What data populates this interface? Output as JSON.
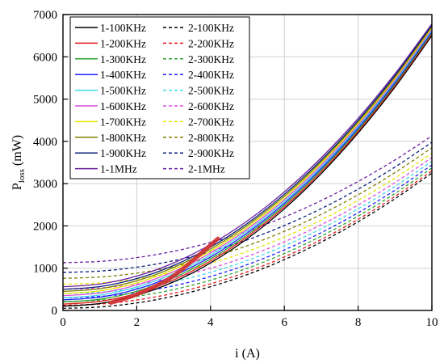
{
  "chart_data": {
    "type": "line",
    "xlabel": "i (A)",
    "ylabel_main": "P",
    "ylabel_sub": "loss",
    "ylabel_unit": " (mW)",
    "xlim": [
      0,
      10
    ],
    "ylim": [
      0,
      7000
    ],
    "xticks": [
      "0",
      "2",
      "4",
      "6",
      "8",
      "10"
    ],
    "yticks": [
      "0",
      "1000",
      "2000",
      "3000",
      "4000",
      "5000",
      "6000",
      "7000"
    ],
    "grid": true,
    "legend_position": "top-left",
    "x": [
      0,
      1,
      2,
      3,
      4,
      5,
      6,
      7,
      8,
      9,
      10
    ],
    "series": [
      {
        "name": "1-100KHz",
        "style": "solid",
        "color": "#000000",
        "values": [
          100,
          164,
          356,
          676,
          1124,
          1700,
          2404,
          3236,
          4196,
          5284,
          6500
        ]
      },
      {
        "name": "1-200KHz",
        "style": "solid",
        "color": "#e41a1c",
        "values": [
          150,
          214,
          405,
          724,
          1171,
          1746,
          2448,
          3278,
          4236,
          5323,
          6537
        ]
      },
      {
        "name": "1-300KHz",
        "style": "solid",
        "color": "#2ca02c",
        "values": [
          200,
          264,
          455,
          773,
          1218,
          1791,
          2491,
          3319,
          4274,
          5357,
          6567
        ]
      },
      {
        "name": "1-400KHz",
        "style": "solid",
        "color": "#1f1fff",
        "values": [
          250,
          314,
          504,
          821,
          1265,
          1836,
          2534,
          3359,
          4311,
          5390,
          6597
        ]
      },
      {
        "name": "1-500KHz",
        "style": "solid",
        "color": "#3fd8e8",
        "values": [
          300,
          364,
          554,
          870,
          1312,
          1881,
          2577,
          3399,
          4348,
          5424,
          6626
        ]
      },
      {
        "name": "1-600KHz",
        "style": "solid",
        "color": "#d94fd9",
        "values": [
          350,
          414,
          603,
          918,
          1359,
          1926,
          2619,
          3439,
          4385,
          5457,
          6656
        ]
      },
      {
        "name": "1-700KHz",
        "style": "solid",
        "color": "#e6e600",
        "values": [
          400,
          464,
          653,
          967,
          1406,
          1971,
          2662,
          3479,
          4422,
          5491,
          6686
        ]
      },
      {
        "name": "1-800KHz",
        "style": "solid",
        "color": "#7f7f00",
        "values": [
          450,
          514,
          702,
          1016,
          1453,
          2016,
          2705,
          3519,
          4459,
          5524,
          6716
        ]
      },
      {
        "name": "1-900KHz",
        "style": "solid",
        "color": "#0a1f7a",
        "values": [
          500,
          564,
          752,
          1064,
          1500,
          2060,
          2748,
          3560,
          4496,
          5560,
          6746
        ]
      },
      {
        "name": "1-1MHz",
        "style": "solid",
        "color": "#6a1fa0",
        "values": [
          560,
          624,
          812,
          1124,
          1560,
          2120,
          2804,
          3612,
          4544,
          5600,
          6780
        ]
      }
    ],
    "series2": [
      {
        "name": "2-100KHz",
        "style": "dashed",
        "color": "#000000",
        "values": [
          50,
          82,
          178,
          338,
          562,
          850,
          1202,
          1618,
          2098,
          2642,
          3250
        ]
      },
      {
        "name": "2-200KHz",
        "style": "dashed",
        "color": "#e41a1c",
        "values": [
          120,
          152,
          248,
          406,
          629,
          915,
          1265,
          1678,
          2156,
          2697,
          3302
        ]
      },
      {
        "name": "2-300KHz",
        "style": "dashed",
        "color": "#2ca02c",
        "values": [
          210,
          241,
          336,
          494,
          716,
          1000,
          1347,
          1758,
          2232,
          2769,
          3370
        ]
      },
      {
        "name": "2-400KHz",
        "style": "dashed",
        "color": "#1f1fff",
        "values": [
          300,
          331,
          426,
          583,
          803,
          1086,
          1432,
          1840,
          2311,
          2845,
          3442
        ]
      },
      {
        "name": "2-500KHz",
        "style": "dashed",
        "color": "#3fd8e8",
        "values": [
          400,
          431,
          525,
          682,
          901,
          1183,
          1527,
          1934,
          2403,
          2934,
          3528
        ]
      },
      {
        "name": "2-600KHz",
        "style": "dashed",
        "color": "#d94fd9",
        "values": [
          500,
          531,
          625,
          781,
          999,
          1280,
          1623,
          2028,
          2495,
          3025,
          3617
        ]
      },
      {
        "name": "2-700KHz",
        "style": "dashed",
        "color": "#e6e600",
        "values": [
          620,
          651,
          744,
          899,
          1117,
          1396,
          1737,
          2140,
          2605,
          3133,
          3722
        ]
      },
      {
        "name": "2-800KHz",
        "style": "dashed",
        "color": "#7f7f00",
        "values": [
          760,
          791,
          883,
          1038,
          1254,
          1532,
          1872,
          2274,
          2737,
          3262,
          3849
        ]
      },
      {
        "name": "2-900KHz",
        "style": "dashed",
        "color": "#0a1f7a",
        "values": [
          900,
          931,
          1023,
          1177,
          1393,
          1670,
          2008,
          2408,
          2870,
          3393,
          3978
        ]
      },
      {
        "name": "2-1MHz",
        "style": "dashed",
        "color": "#6a1fa0",
        "values": [
          1130,
          1160,
          1250,
          1400,
          1610,
          1880,
          2210,
          2600,
          3050,
          3560,
          4130
        ]
      }
    ],
    "highlight": {
      "color": "#d03030",
      "points": [
        [
          1.3,
          180
        ],
        [
          2.0,
          380
        ],
        [
          3.0,
          820
        ],
        [
          4.2,
          1700
        ]
      ]
    }
  }
}
